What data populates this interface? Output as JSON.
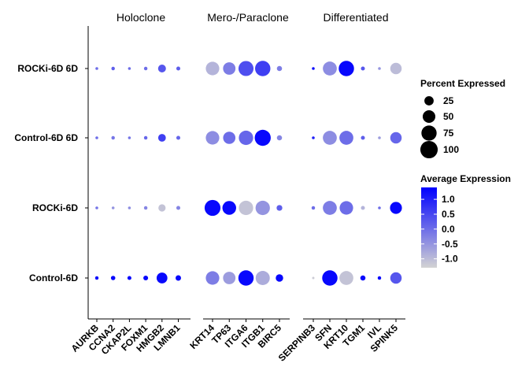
{
  "chart_data": {
    "type": "dotplot",
    "panels": [
      {
        "title": "Holoclone",
        "genes": [
          "AURKB",
          "CCNA2",
          "CKAP2L",
          "FOXM1",
          "HMGB2",
          "LMNB1"
        ]
      },
      {
        "title": "Mero-/Paraclone",
        "genes": [
          "KRT14",
          "TP63",
          "ITGA6",
          "ITGB1",
          "BIRC5"
        ]
      },
      {
        "title": "Differentiated",
        "genes": [
          "SERPINB3",
          "SFN",
          "KRT10",
          "TGM1",
          "IVL",
          "SPINK5"
        ]
      }
    ],
    "groups": [
      "ROCKi-6D 6D",
      "Control-6D 6D",
      "ROCKi-6D",
      "Control-6D"
    ],
    "points": [
      {
        "group": "ROCKi-6D 6D",
        "gene": "AURKB",
        "pct": 1,
        "avg": 0.0
      },
      {
        "group": "ROCKi-6D 6D",
        "gene": "CCNA2",
        "pct": 2,
        "avg": 0.2
      },
      {
        "group": "ROCKi-6D 6D",
        "gene": "CKAP2L",
        "pct": 1,
        "avg": 0.0
      },
      {
        "group": "ROCKi-6D 6D",
        "gene": "FOXM1",
        "pct": 2,
        "avg": 0.0
      },
      {
        "group": "ROCKi-6D 6D",
        "gene": "HMGB2",
        "pct": 17,
        "avg": 0.3
      },
      {
        "group": "ROCKi-6D 6D",
        "gene": "LMNB1",
        "pct": 3,
        "avg": 0.2
      },
      {
        "group": "ROCKi-6D 6D",
        "gene": "KRT14",
        "pct": 58,
        "avg": -0.9
      },
      {
        "group": "ROCKi-6D 6D",
        "gene": "TP63",
        "pct": 48,
        "avg": -0.2
      },
      {
        "group": "ROCKi-6D 6D",
        "gene": "ITGA6",
        "pct": 73,
        "avg": 0.4
      },
      {
        "group": "ROCKi-6D 6D",
        "gene": "ITGB1",
        "pct": 76,
        "avg": 0.6
      },
      {
        "group": "ROCKi-6D 6D",
        "gene": "BIRC5",
        "pct": 6,
        "avg": -0.2
      },
      {
        "group": "ROCKi-6D 6D",
        "gene": "SERPINB3",
        "pct": 1,
        "avg": 1.2
      },
      {
        "group": "ROCKi-6D 6D",
        "gene": "SFN",
        "pct": 62,
        "avg": -0.4
      },
      {
        "group": "ROCKi-6D 6D",
        "gene": "KRT10",
        "pct": 76,
        "avg": 1.3
      },
      {
        "group": "ROCKi-6D 6D",
        "gene": "TGM1",
        "pct": 3,
        "avg": 0.3
      },
      {
        "group": "ROCKi-6D 6D",
        "gene": "IVL",
        "pct": 1,
        "avg": -0.5
      },
      {
        "group": "ROCKi-6D 6D",
        "gene": "SPINK5",
        "pct": 40,
        "avg": -1.0
      },
      {
        "group": "Control-6D 6D",
        "gene": "AURKB",
        "pct": 1,
        "avg": 0.0
      },
      {
        "group": "Control-6D 6D",
        "gene": "CCNA2",
        "pct": 2,
        "avg": -0.1
      },
      {
        "group": "Control-6D 6D",
        "gene": "CKAP2L",
        "pct": 1,
        "avg": -0.1
      },
      {
        "group": "Control-6D 6D",
        "gene": "FOXM1",
        "pct": 2,
        "avg": 0.1
      },
      {
        "group": "Control-6D 6D",
        "gene": "HMGB2",
        "pct": 16,
        "avg": 0.6
      },
      {
        "group": "Control-6D 6D",
        "gene": "LMNB1",
        "pct": 3,
        "avg": 0.1
      },
      {
        "group": "Control-6D 6D",
        "gene": "KRT14",
        "pct": 58,
        "avg": -0.4
      },
      {
        "group": "Control-6D 6D",
        "gene": "TP63",
        "pct": 47,
        "avg": 0.0
      },
      {
        "group": "Control-6D 6D",
        "gene": "ITGA6",
        "pct": 66,
        "avg": 0.1
      },
      {
        "group": "Control-6D 6D",
        "gene": "ITGB1",
        "pct": 84,
        "avg": 1.3
      },
      {
        "group": "Control-6D 6D",
        "gene": "BIRC5",
        "pct": 6,
        "avg": -0.3
      },
      {
        "group": "Control-6D 6D",
        "gene": "SERPINB3",
        "pct": 1,
        "avg": 1.0
      },
      {
        "group": "Control-6D 6D",
        "gene": "SFN",
        "pct": 62,
        "avg": -0.4
      },
      {
        "group": "Control-6D 6D",
        "gene": "KRT10",
        "pct": 62,
        "avg": 0.0
      },
      {
        "group": "Control-6D 6D",
        "gene": "TGM1",
        "pct": 3,
        "avg": 0.2
      },
      {
        "group": "Control-6D 6D",
        "gene": "IVL",
        "pct": 1,
        "avg": -0.6
      },
      {
        "group": "Control-6D 6D",
        "gene": "SPINK5",
        "pct": 40,
        "avg": 0.1
      },
      {
        "group": "ROCKi-6D",
        "gene": "AURKB",
        "pct": 1,
        "avg": -0.1
      },
      {
        "group": "ROCKi-6D",
        "gene": "CCNA2",
        "pct": 1,
        "avg": -0.5
      },
      {
        "group": "ROCKi-6D",
        "gene": "CKAP2L",
        "pct": 1,
        "avg": -0.4
      },
      {
        "group": "ROCKi-6D",
        "gene": "FOXM1",
        "pct": 2,
        "avg": -0.3
      },
      {
        "group": "ROCKi-6D",
        "gene": "HMGB2",
        "pct": 14,
        "avg": -1.1
      },
      {
        "group": "ROCKi-6D",
        "gene": "LMNB1",
        "pct": 3,
        "avg": -0.3
      },
      {
        "group": "ROCKi-6D",
        "gene": "KRT14",
        "pct": 82,
        "avg": 1.3
      },
      {
        "group": "ROCKi-6D",
        "gene": "TP63",
        "pct": 60,
        "avg": 1.3
      },
      {
        "group": "ROCKi-6D",
        "gene": "ITGA6",
        "pct": 66,
        "avg": -1.1
      },
      {
        "group": "ROCKi-6D",
        "gene": "ITGB1",
        "pct": 66,
        "avg": -0.5
      },
      {
        "group": "ROCKi-6D",
        "gene": "BIRC5",
        "pct": 8,
        "avg": 0.2
      },
      {
        "group": "ROCKi-6D",
        "gene": "SERPINB3",
        "pct": 2,
        "avg": 0.0
      },
      {
        "group": "ROCKi-6D",
        "gene": "SFN",
        "pct": 62,
        "avg": -0.2
      },
      {
        "group": "ROCKi-6D",
        "gene": "KRT10",
        "pct": 58,
        "avg": 0.0
      },
      {
        "group": "ROCKi-6D",
        "gene": "TGM1",
        "pct": 3,
        "avg": -0.9
      },
      {
        "group": "ROCKi-6D",
        "gene": "IVL",
        "pct": 1,
        "avg": 0.0
      },
      {
        "group": "ROCKi-6D",
        "gene": "SPINK5",
        "pct": 44,
        "avg": 1.3
      },
      {
        "group": "Control-6D",
        "gene": "AURKB",
        "pct": 2,
        "avg": 1.2
      },
      {
        "group": "Control-6D",
        "gene": "CCNA2",
        "pct": 4,
        "avg": 1.3
      },
      {
        "group": "Control-6D",
        "gene": "CKAP2L",
        "pct": 3,
        "avg": 1.3
      },
      {
        "group": "Control-6D",
        "gene": "FOXM1",
        "pct": 5,
        "avg": 1.3
      },
      {
        "group": "Control-6D",
        "gene": "HMGB2",
        "pct": 35,
        "avg": 1.3
      },
      {
        "group": "Control-6D",
        "gene": "LMNB1",
        "pct": 7,
        "avg": 1.3
      },
      {
        "group": "Control-6D",
        "gene": "KRT14",
        "pct": 58,
        "avg": -0.2
      },
      {
        "group": "Control-6D",
        "gene": "TP63",
        "pct": 48,
        "avg": -0.6
      },
      {
        "group": "Control-6D",
        "gene": "ITGA6",
        "pct": 76,
        "avg": 1.3
      },
      {
        "group": "Control-6D",
        "gene": "ITGB1",
        "pct": 64,
        "avg": -0.8
      },
      {
        "group": "Control-6D",
        "gene": "BIRC5",
        "pct": 15,
        "avg": 1.3
      },
      {
        "group": "Control-6D",
        "gene": "SERPINB3",
        "pct": 0.5,
        "avg": -1.2
      },
      {
        "group": "Control-6D",
        "gene": "SFN",
        "pct": 76,
        "avg": 1.3
      },
      {
        "group": "Control-6D",
        "gene": "KRT10",
        "pct": 62,
        "avg": -1.1
      },
      {
        "group": "Control-6D",
        "gene": "TGM1",
        "pct": 6,
        "avg": 1.3
      },
      {
        "group": "Control-6D",
        "gene": "IVL",
        "pct": 2,
        "avg": 1.3
      },
      {
        "group": "Control-6D",
        "gene": "SPINK5",
        "pct": 40,
        "avg": 0.3
      }
    ],
    "size_legend": {
      "title": "Percent Expressed",
      "values": [
        25,
        50,
        75,
        100
      ],
      "labels": [
        "25",
        "50",
        "75",
        "100"
      ]
    },
    "color_legend": {
      "title": "Average Expression",
      "range": [
        -1.3,
        1.4
      ],
      "ticks": [
        1.0,
        0.5,
        0.0,
        -0.5,
        -1.0
      ],
      "tick_labels": [
        "1.0",
        "0.5",
        "0.0",
        "-0.5",
        "-1.0"
      ],
      "color_low": "#d3d3d3",
      "color_high": "#0000ff"
    }
  }
}
